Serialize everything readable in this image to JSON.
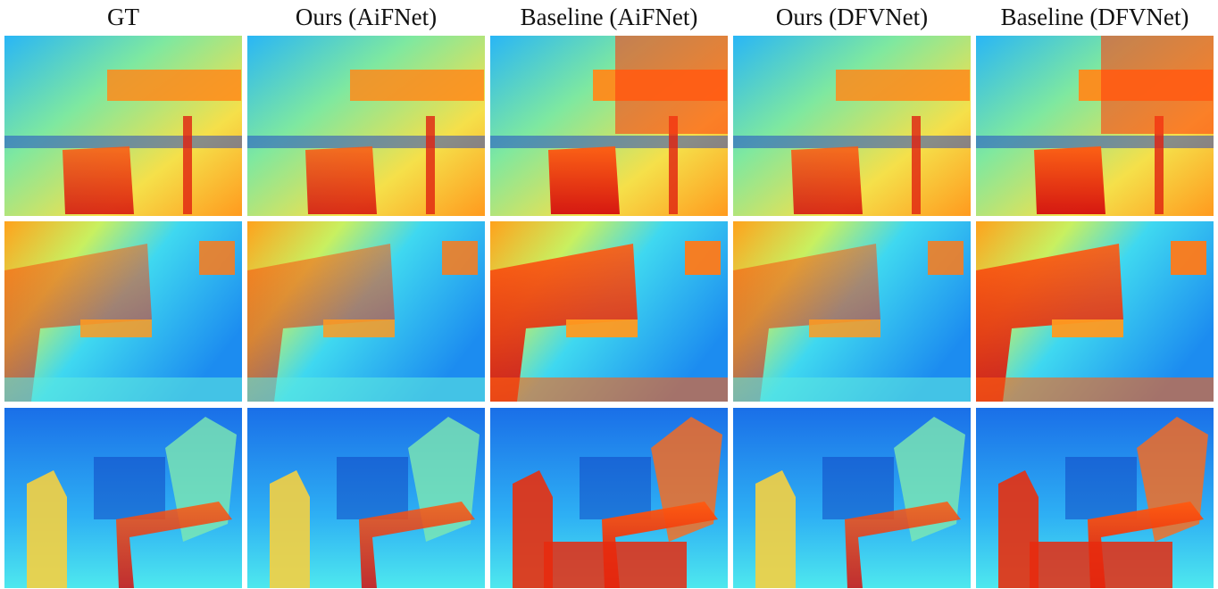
{
  "columns": [
    "GT",
    "Ours (AiFNet)",
    "Baseline (AiFNet)",
    "Ours (DFVNet)",
    "Baseline (DFVNet)"
  ]
}
